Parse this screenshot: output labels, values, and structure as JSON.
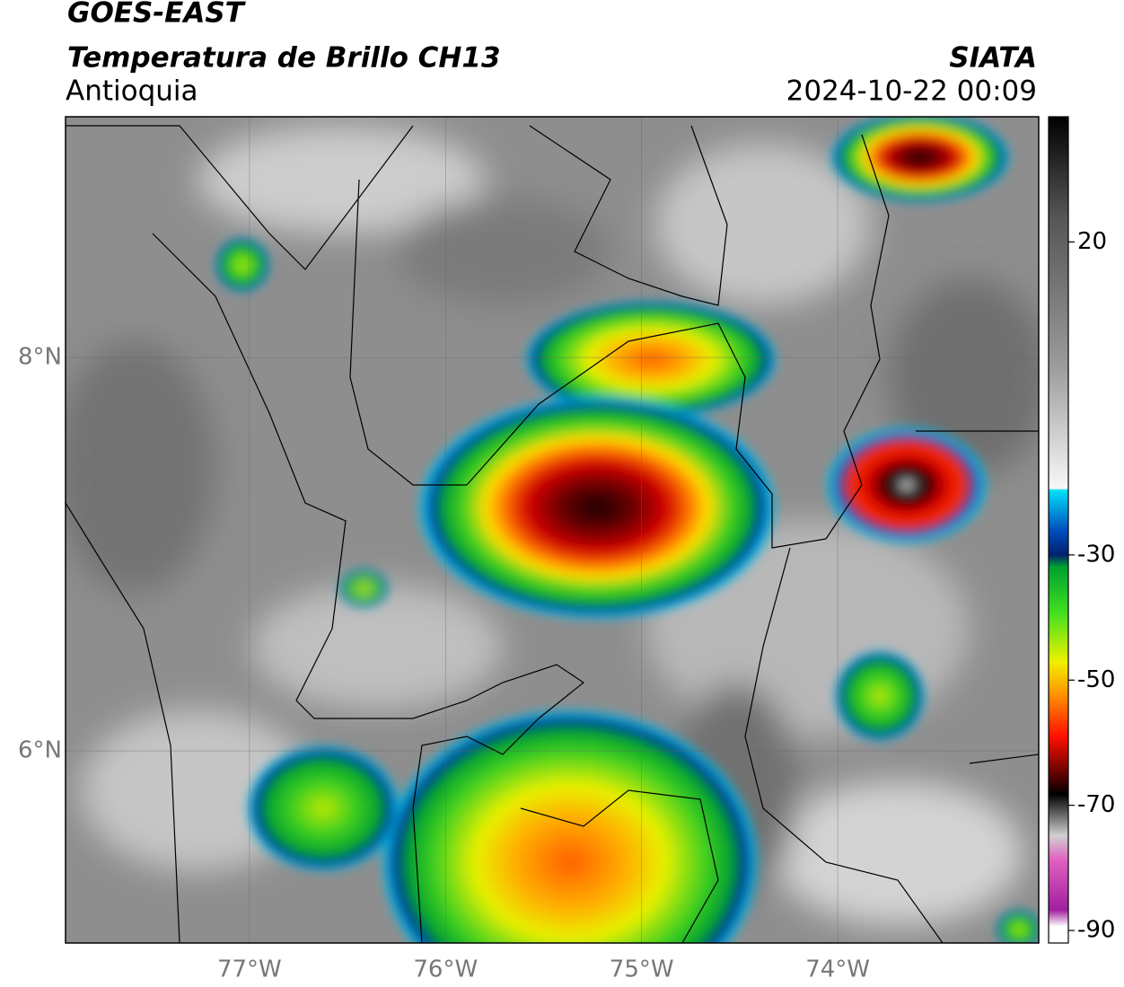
{
  "header": {
    "satellite": "GOES-EAST",
    "product": "Temperatura de Brillo CH13",
    "region": "Antioquia",
    "source": "SIATA",
    "datetime": "2024-10-22 00:09"
  },
  "map": {
    "xlim": [
      -77.938,
      -72.975
    ],
    "ylim": [
      5.023,
      9.224
    ],
    "xticks": [
      {
        "value": -77,
        "label": "77°W"
      },
      {
        "value": -76,
        "label": "76°W"
      },
      {
        "value": -75,
        "label": "75°W"
      },
      {
        "value": -74,
        "label": "74°W"
      }
    ],
    "yticks": [
      {
        "value": 6,
        "label": "6°N"
      },
      {
        "value": 8,
        "label": "8°N"
      }
    ]
  },
  "colorbar": {
    "range": [
      -92,
      40
    ],
    "ticks": [
      20,
      -30,
      -50,
      -70,
      -90
    ]
  }
}
